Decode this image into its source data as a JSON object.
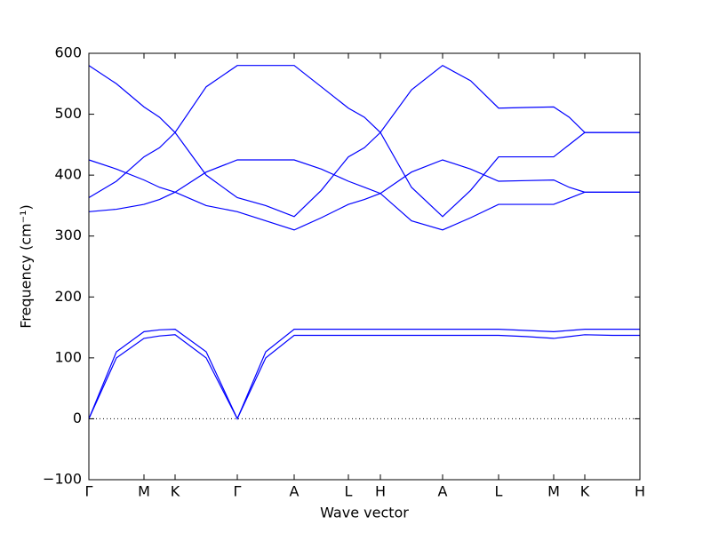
{
  "chart_data": {
    "type": "line",
    "xlabel": "Wave vector",
    "ylabel": "Frequency (cm⁻¹)",
    "x": [
      0,
      0.31,
      0.62,
      0.795,
      0.97,
      1.32,
      1.67,
      1.99,
      2.31,
      2.615,
      2.92,
      3.1,
      3.28,
      3.63,
      3.98,
      4.295,
      4.61,
      4.92,
      5.23,
      5.405,
      5.58,
      5.89,
      6.2
    ],
    "xlim": [
      0,
      6.2
    ],
    "xticks": [
      {
        "value": 0,
        "label": "Γ"
      },
      {
        "value": 0.62,
        "label": "M"
      },
      {
        "value": 0.97,
        "label": "K"
      },
      {
        "value": 1.67,
        "label": "Γ"
      },
      {
        "value": 2.31,
        "label": "A"
      },
      {
        "value": 2.92,
        "label": "L"
      },
      {
        "value": 3.28,
        "label": "H"
      },
      {
        "value": 3.98,
        "label": "A"
      },
      {
        "value": 4.61,
        "label": "L"
      },
      {
        "value": 5.23,
        "label": "M"
      },
      {
        "value": 5.58,
        "label": "K"
      },
      {
        "value": 6.2,
        "label": "H"
      }
    ],
    "ylim": [
      -100,
      600
    ],
    "yticks": [
      {
        "value": -100,
        "label": "−100"
      },
      0,
      100,
      200,
      300,
      400,
      500,
      600
    ],
    "zero_line": true,
    "series": [
      {
        "color": "#0000ff",
        "values": [
          580,
          550,
          512,
          495,
          470,
          400,
          363,
          350,
          332,
          375,
          430,
          445,
          470,
          540,
          580,
          555,
          510,
          511,
          512,
          495,
          470,
          470,
          470
        ]
      },
      {
        "color": "#0000ff",
        "values": [
          363,
          390,
          430,
          445,
          470,
          545,
          580,
          580,
          580,
          545,
          510,
          495,
          470,
          380,
          332,
          375,
          430,
          430,
          430,
          450,
          470,
          470,
          470
        ]
      },
      {
        "color": "#0000ff",
        "values": [
          425,
          410,
          392,
          380,
          372,
          350,
          340,
          325,
          310,
          330,
          352,
          360,
          370,
          405,
          425,
          410,
          390,
          391,
          392,
          380,
          372,
          372,
          372
        ]
      },
      {
        "color": "#0000ff",
        "values": [
          340,
          344,
          352,
          360,
          372,
          405,
          425,
          425,
          425,
          410,
          390,
          380,
          370,
          325,
          310,
          330,
          352,
          352,
          352,
          362,
          372,
          372,
          372
        ]
      },
      {
        "color": "#0000ff",
        "values": [
          0,
          110,
          143,
          146,
          147,
          110,
          0,
          110,
          147,
          147,
          147,
          147,
          147,
          147,
          147,
          147,
          147,
          145,
          143,
          145,
          147,
          147,
          147
        ]
      },
      {
        "color": "#0000ff",
        "values": [
          0,
          100,
          132,
          136,
          138,
          100,
          0,
          100,
          137,
          137,
          137,
          137,
          137,
          137,
          137,
          137,
          137,
          135,
          132,
          135,
          138,
          137,
          137
        ]
      }
    ]
  }
}
